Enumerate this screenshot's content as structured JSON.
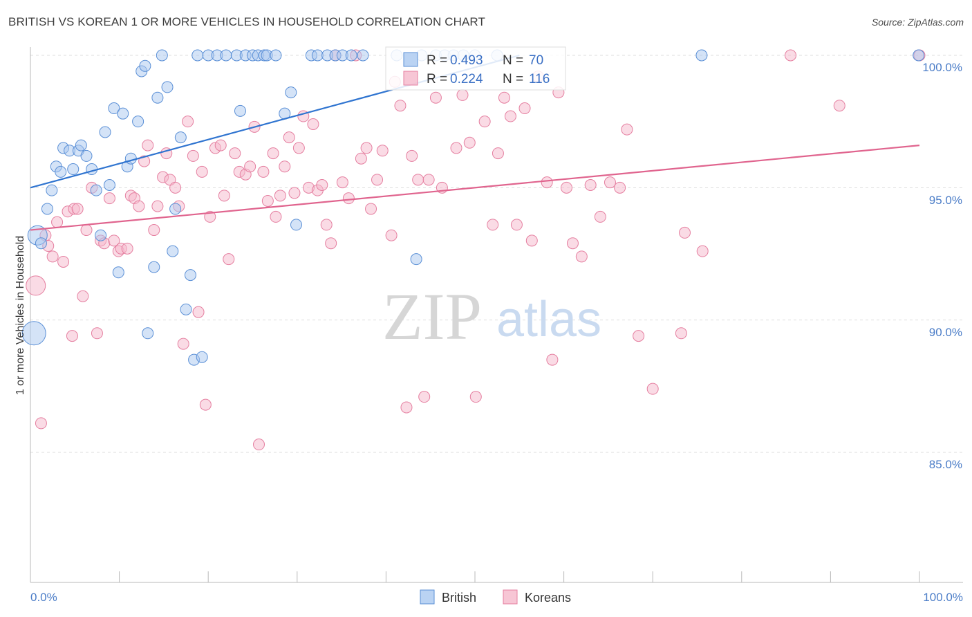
{
  "title": "BRITISH VS KOREAN 1 OR MORE VEHICLES IN HOUSEHOLD CORRELATION CHART",
  "source": "Source: ZipAtlas.com",
  "watermark": {
    "zip": "ZIP",
    "atlas": "atlas"
  },
  "colors": {
    "british_fill": "#a9c8f0",
    "british_stroke": "#5a8fd6",
    "british_line": "#2f74d0",
    "korean_fill": "#f5b8cb",
    "korean_stroke": "#e57fa0",
    "korean_line": "#e0648e",
    "accent_text": "#3a6fc4",
    "grid": "#dddddd"
  },
  "legend": {
    "rows": [
      {
        "r_label": "R =",
        "r_value": "0.493",
        "n_label": "N =",
        "n_value": "70"
      },
      {
        "r_label": "R =",
        "r_value": "0.224",
        "n_label": "N =",
        "n_value": "116"
      }
    ]
  },
  "bottom_legend": {
    "british": "British",
    "koreans": "Koreans"
  },
  "chart_data": {
    "type": "scatter",
    "title": "BRITISH VS KOREAN 1 OR MORE VEHICLES IN HOUSEHOLD CORRELATION CHART",
    "xlabel": "",
    "ylabel": "1 or more Vehicles in Household",
    "x_tick_labels": [
      "0.0%",
      "100.0%"
    ],
    "y_tick_labels": [
      "100.0%",
      "95.0%",
      "90.0%",
      "85.0%"
    ],
    "y_ticks": [
      100,
      95,
      90,
      85
    ],
    "xlim": [
      0,
      100
    ],
    "ylim": [
      79.5,
      100.8
    ],
    "grid": true,
    "legend_placement": "top-center",
    "series": [
      {
        "name": "British",
        "R": 0.493,
        "N": 70,
        "trend": {
          "x0": 0,
          "y0": 95.0,
          "x1": 55,
          "y1": 100.0
        },
        "points": [
          [
            0.4,
            89.5,
            3
          ],
          [
            0.8,
            93.2,
            2
          ],
          [
            1.2,
            92.9,
            1
          ],
          [
            1.9,
            94.2,
            1
          ],
          [
            2.4,
            94.9,
            1
          ],
          [
            2.9,
            95.8,
            1
          ],
          [
            3.4,
            95.6,
            1
          ],
          [
            3.7,
            96.5,
            1
          ],
          [
            4.4,
            96.4,
            1
          ],
          [
            4.8,
            95.7,
            1
          ],
          [
            5.4,
            96.4,
            1
          ],
          [
            5.7,
            96.6,
            1
          ],
          [
            6.3,
            96.2,
            1
          ],
          [
            6.9,
            95.7,
            1
          ],
          [
            7.4,
            94.9,
            1
          ],
          [
            7.9,
            93.2,
            1
          ],
          [
            8.4,
            97.1,
            1
          ],
          [
            8.9,
            95.1,
            1
          ],
          [
            9.4,
            98.0,
            1
          ],
          [
            9.9,
            91.8,
            1
          ],
          [
            10.4,
            97.8,
            1
          ],
          [
            10.9,
            95.8,
            1
          ],
          [
            11.3,
            96.1,
            1
          ],
          [
            12.1,
            97.5,
            1
          ],
          [
            12.5,
            99.4,
            1
          ],
          [
            12.9,
            99.6,
            1
          ],
          [
            13.2,
            89.5,
            1
          ],
          [
            13.9,
            92.0,
            1
          ],
          [
            14.3,
            98.4,
            1
          ],
          [
            14.8,
            100.0,
            1
          ],
          [
            15.4,
            98.8,
            1
          ],
          [
            16.3,
            94.2,
            1
          ],
          [
            16.0,
            92.6,
            1
          ],
          [
            16.9,
            96.9,
            1
          ],
          [
            17.5,
            90.4,
            1
          ],
          [
            18.0,
            91.7,
            1
          ],
          [
            18.4,
            88.5,
            1
          ],
          [
            19.3,
            88.6,
            1
          ],
          [
            18.8,
            100.0,
            1
          ],
          [
            20.0,
            100.0,
            1
          ],
          [
            21.0,
            100.0,
            1
          ],
          [
            22.0,
            100.0,
            1
          ],
          [
            23.2,
            100.0,
            1
          ],
          [
            23.6,
            97.9,
            1
          ],
          [
            24.2,
            100.0,
            1
          ],
          [
            25.0,
            100.0,
            1
          ],
          [
            25.6,
            100.0,
            1
          ],
          [
            26.3,
            100.0,
            1
          ],
          [
            26.6,
            100.0,
            1
          ],
          [
            27.6,
            100.0,
            1
          ],
          [
            28.6,
            97.8,
            1
          ],
          [
            29.3,
            98.6,
            1
          ],
          [
            29.9,
            93.6,
            1
          ],
          [
            31.6,
            100.0,
            1
          ],
          [
            32.3,
            100.0,
            1
          ],
          [
            33.4,
            100.0,
            1
          ],
          [
            34.3,
            100.0,
            1
          ],
          [
            35.1,
            100.0,
            1
          ],
          [
            36.1,
            100.0,
            1
          ],
          [
            37.4,
            100.0,
            1
          ],
          [
            41.2,
            100.0,
            1
          ],
          [
            43.4,
            92.3,
            1
          ],
          [
            44.0,
            100.0,
            1
          ],
          [
            45.6,
            100.0,
            1
          ],
          [
            46.6,
            100.0,
            1
          ],
          [
            47.6,
            100.0,
            1
          ],
          [
            48.7,
            100.0,
            1
          ],
          [
            50.0,
            100.0,
            1
          ],
          [
            52.5,
            100.0,
            1
          ],
          [
            75.5,
            100.0,
            1
          ],
          [
            99.9,
            100.0,
            1
          ]
        ]
      },
      {
        "name": "Koreans",
        "R": 0.224,
        "N": 116,
        "trend": {
          "x0": 0,
          "y0": 93.4,
          "x1": 100,
          "y1": 96.6
        },
        "points": [
          [
            0.6,
            91.3,
            2
          ],
          [
            1.2,
            86.1,
            1
          ],
          [
            1.7,
            93.2,
            1
          ],
          [
            2.0,
            92.8,
            1
          ],
          [
            2.5,
            92.4,
            1
          ],
          [
            3.0,
            93.7,
            1
          ],
          [
            3.7,
            92.2,
            1
          ],
          [
            4.2,
            94.1,
            1
          ],
          [
            4.7,
            89.4,
            1
          ],
          [
            4.9,
            94.2,
            1
          ],
          [
            5.3,
            94.2,
            1
          ],
          [
            5.9,
            90.9,
            1
          ],
          [
            6.3,
            93.4,
            1
          ],
          [
            6.9,
            95.0,
            1
          ],
          [
            7.5,
            89.5,
            1
          ],
          [
            7.9,
            93.0,
            1
          ],
          [
            8.3,
            92.9,
            1
          ],
          [
            8.9,
            94.6,
            1
          ],
          [
            9.4,
            93.0,
            1
          ],
          [
            9.9,
            92.6,
            1
          ],
          [
            10.2,
            92.7,
            1
          ],
          [
            10.9,
            92.7,
            1
          ],
          [
            11.3,
            94.7,
            1
          ],
          [
            11.7,
            94.6,
            1
          ],
          [
            12.2,
            94.3,
            1
          ],
          [
            12.8,
            96.0,
            1
          ],
          [
            13.2,
            96.6,
            1
          ],
          [
            13.9,
            93.4,
            1
          ],
          [
            14.3,
            94.3,
            1
          ],
          [
            14.9,
            95.4,
            1
          ],
          [
            15.3,
            96.3,
            1
          ],
          [
            15.7,
            95.3,
            1
          ],
          [
            16.3,
            95.0,
            1
          ],
          [
            16.7,
            94.3,
            1
          ],
          [
            17.2,
            89.1,
            1
          ],
          [
            17.7,
            97.5,
            1
          ],
          [
            18.3,
            96.2,
            1
          ],
          [
            18.9,
            90.3,
            1
          ],
          [
            19.3,
            95.6,
            1
          ],
          [
            19.7,
            86.8,
            1
          ],
          [
            20.2,
            93.9,
            1
          ],
          [
            20.8,
            96.5,
            1
          ],
          [
            21.4,
            96.6,
            1
          ],
          [
            21.8,
            94.7,
            1
          ],
          [
            22.3,
            92.3,
            1
          ],
          [
            23.0,
            96.3,
            1
          ],
          [
            23.5,
            95.6,
            1
          ],
          [
            24.2,
            95.5,
            1
          ],
          [
            24.7,
            95.8,
            1
          ],
          [
            25.2,
            97.3,
            1
          ],
          [
            25.7,
            85.3,
            1
          ],
          [
            26.2,
            95.6,
            1
          ],
          [
            26.7,
            94.5,
            1
          ],
          [
            27.3,
            96.3,
            1
          ],
          [
            27.6,
            93.9,
            1
          ],
          [
            28.1,
            94.7,
            1
          ],
          [
            28.6,
            95.8,
            1
          ],
          [
            29.1,
            96.9,
            1
          ],
          [
            29.7,
            94.8,
            1
          ],
          [
            30.2,
            96.5,
            1
          ],
          [
            30.7,
            97.7,
            1
          ],
          [
            31.3,
            95.0,
            1
          ],
          [
            31.8,
            97.4,
            1
          ],
          [
            32.3,
            94.9,
            1
          ],
          [
            32.8,
            95.1,
            1
          ],
          [
            33.3,
            93.6,
            1
          ],
          [
            33.8,
            92.9,
            1
          ],
          [
            34.3,
            100.0,
            1
          ],
          [
            35.1,
            95.2,
            1
          ],
          [
            35.8,
            94.6,
            1
          ],
          [
            36.6,
            100.0,
            1
          ],
          [
            37.2,
            96.1,
            1
          ],
          [
            37.8,
            96.5,
            1
          ],
          [
            38.3,
            94.2,
            1
          ],
          [
            39.0,
            95.3,
            1
          ],
          [
            39.6,
            96.4,
            1
          ],
          [
            40.6,
            93.2,
            1
          ],
          [
            41.0,
            99.0,
            1
          ],
          [
            41.6,
            98.1,
            1
          ],
          [
            42.3,
            86.7,
            1
          ],
          [
            42.9,
            96.2,
            1
          ],
          [
            43.6,
            95.3,
            1
          ],
          [
            44.3,
            87.1,
            1
          ],
          [
            44.8,
            95.3,
            1
          ],
          [
            45.6,
            98.4,
            1
          ],
          [
            46.3,
            95.0,
            1
          ],
          [
            47.9,
            96.5,
            1
          ],
          [
            48.6,
            98.5,
            1
          ],
          [
            49.4,
            96.7,
            1
          ],
          [
            50.1,
            87.1,
            1
          ],
          [
            51.1,
            97.5,
            1
          ],
          [
            52.0,
            93.6,
            1
          ],
          [
            52.6,
            96.3,
            1
          ],
          [
            53.3,
            98.4,
            1
          ],
          [
            54.0,
            97.7,
            1
          ],
          [
            54.7,
            93.6,
            1
          ],
          [
            55.6,
            98.0,
            1
          ],
          [
            56.4,
            93.0,
            1
          ],
          [
            57.1,
            99.2,
            1
          ],
          [
            58.1,
            95.2,
            1
          ],
          [
            58.7,
            88.5,
            1
          ],
          [
            59.4,
            98.6,
            1
          ],
          [
            60.3,
            95.0,
            1
          ],
          [
            61.0,
            92.9,
            1
          ],
          [
            62.0,
            92.4,
            1
          ],
          [
            63.0,
            95.1,
            1
          ],
          [
            64.1,
            93.9,
            1
          ],
          [
            65.2,
            95.2,
            1
          ],
          [
            66.3,
            95.0,
            1
          ],
          [
            67.1,
            97.2,
            1
          ],
          [
            68.4,
            89.4,
            1
          ],
          [
            70.0,
            87.4,
            1
          ],
          [
            73.2,
            89.5,
            1
          ],
          [
            73.6,
            93.3,
            1
          ],
          [
            75.6,
            92.6,
            1
          ],
          [
            85.5,
            100.0,
            1
          ],
          [
            91.0,
            98.1,
            1
          ],
          [
            100.0,
            100.0,
            1
          ]
        ]
      }
    ]
  }
}
